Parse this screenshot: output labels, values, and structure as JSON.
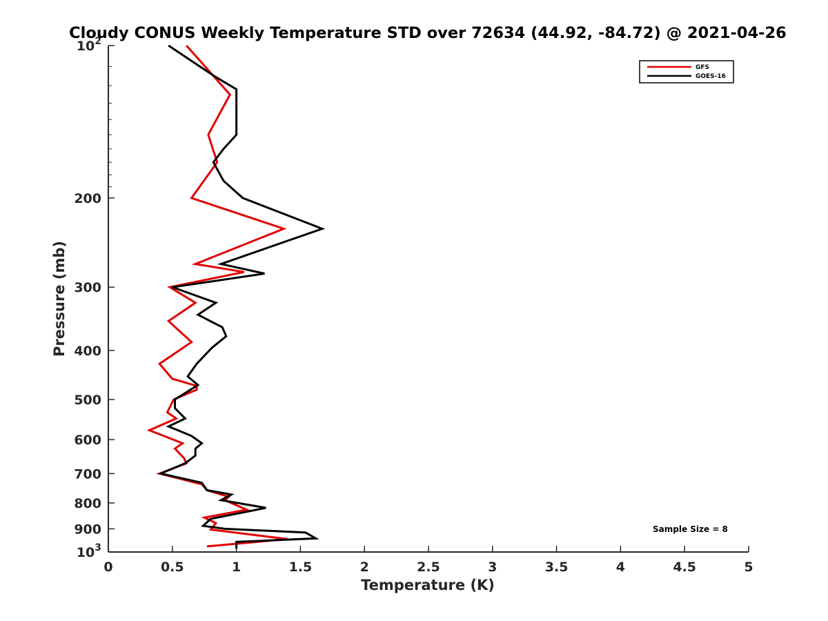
{
  "chart_data": {
    "type": "line",
    "title": "Cloudy CONUS Weekly Temperature STD over 72634 (44.92, -84.72) @ 2021-04-26",
    "xlabel": "Temperature (K)",
    "ylabel": "Pressure (mb)",
    "xlim": [
      0,
      5
    ],
    "ylim": [
      100,
      1000
    ],
    "y_scale": "log",
    "y_reversed": true,
    "x_ticks": [
      "0",
      "0.5",
      "1",
      "1.5",
      "2",
      "2.5",
      "3",
      "3.5",
      "4",
      "4.5",
      "5"
    ],
    "y_ticks": [
      {
        "value": 100,
        "base": "10",
        "exp": "2"
      },
      {
        "value": 200,
        "label": "200"
      },
      {
        "value": 300,
        "label": "300"
      },
      {
        "value": 400,
        "label": "400"
      },
      {
        "value": 500,
        "label": "500"
      },
      {
        "value": 600,
        "label": "600"
      },
      {
        "value": 700,
        "label": "700"
      },
      {
        "value": 800,
        "label": "800"
      },
      {
        "value": 900,
        "label": "900"
      },
      {
        "value": 1000,
        "base": "10",
        "exp": "3"
      }
    ],
    "legend_position": "top-right",
    "annotation": "Sample Size = 8",
    "series": [
      {
        "name": "GFS",
        "color": "#e00000",
        "points": [
          [
            0.61,
            100
          ],
          [
            0.95,
            125
          ],
          [
            0.78,
            150
          ],
          [
            0.85,
            170
          ],
          [
            0.65,
            200
          ],
          [
            1.37,
            230
          ],
          [
            0.68,
            270
          ],
          [
            1.06,
            280
          ],
          [
            0.48,
            300
          ],
          [
            0.68,
            322
          ],
          [
            0.47,
            350
          ],
          [
            0.65,
            385
          ],
          [
            0.4,
            425
          ],
          [
            0.5,
            455
          ],
          [
            0.69,
            470
          ],
          [
            0.69,
            478
          ],
          [
            0.51,
            500
          ],
          [
            0.46,
            530
          ],
          [
            0.53,
            545
          ],
          [
            0.32,
            575
          ],
          [
            0.58,
            610
          ],
          [
            0.52,
            625
          ],
          [
            0.59,
            652
          ],
          [
            0.61,
            668
          ],
          [
            0.4,
            700
          ],
          [
            0.73,
            735
          ],
          [
            0.77,
            755
          ],
          [
            0.94,
            778
          ],
          [
            0.91,
            790
          ],
          [
            1.08,
            825
          ],
          [
            0.75,
            855
          ],
          [
            0.84,
            877
          ],
          [
            0.8,
            903
          ],
          [
            1.4,
            943
          ],
          [
            0.77,
            975
          ]
        ]
      },
      {
        "name": "GOES-16",
        "color": "#000000",
        "points": [
          [
            0.47,
            100
          ],
          [
            0.83,
            115
          ],
          [
            1.0,
            122
          ],
          [
            1.0,
            140
          ],
          [
            1.0,
            150
          ],
          [
            0.9,
            160
          ],
          [
            0.82,
            170
          ],
          [
            0.9,
            185
          ],
          [
            1.05,
            200
          ],
          [
            1.67,
            230
          ],
          [
            0.88,
            270
          ],
          [
            1.22,
            282
          ],
          [
            0.5,
            300
          ],
          [
            0.84,
            322
          ],
          [
            0.7,
            340
          ],
          [
            0.89,
            360
          ],
          [
            0.92,
            375
          ],
          [
            0.81,
            395
          ],
          [
            0.69,
            425
          ],
          [
            0.62,
            450
          ],
          [
            0.7,
            468
          ],
          [
            0.52,
            500
          ],
          [
            0.52,
            520
          ],
          [
            0.6,
            545
          ],
          [
            0.47,
            565
          ],
          [
            0.65,
            590
          ],
          [
            0.73,
            610
          ],
          [
            0.68,
            625
          ],
          [
            0.68,
            645
          ],
          [
            0.6,
            668
          ],
          [
            0.41,
            700
          ],
          [
            0.73,
            730
          ],
          [
            0.77,
            755
          ],
          [
            0.96,
            770
          ],
          [
            0.88,
            790
          ],
          [
            1.23,
            818
          ],
          [
            1.13,
            828
          ],
          [
            0.8,
            860
          ],
          [
            0.74,
            888
          ],
          [
            0.91,
            900
          ],
          [
            1.54,
            915
          ],
          [
            1.62,
            940
          ],
          [
            1.0,
            955
          ],
          [
            1.0,
            985
          ]
        ]
      }
    ]
  }
}
